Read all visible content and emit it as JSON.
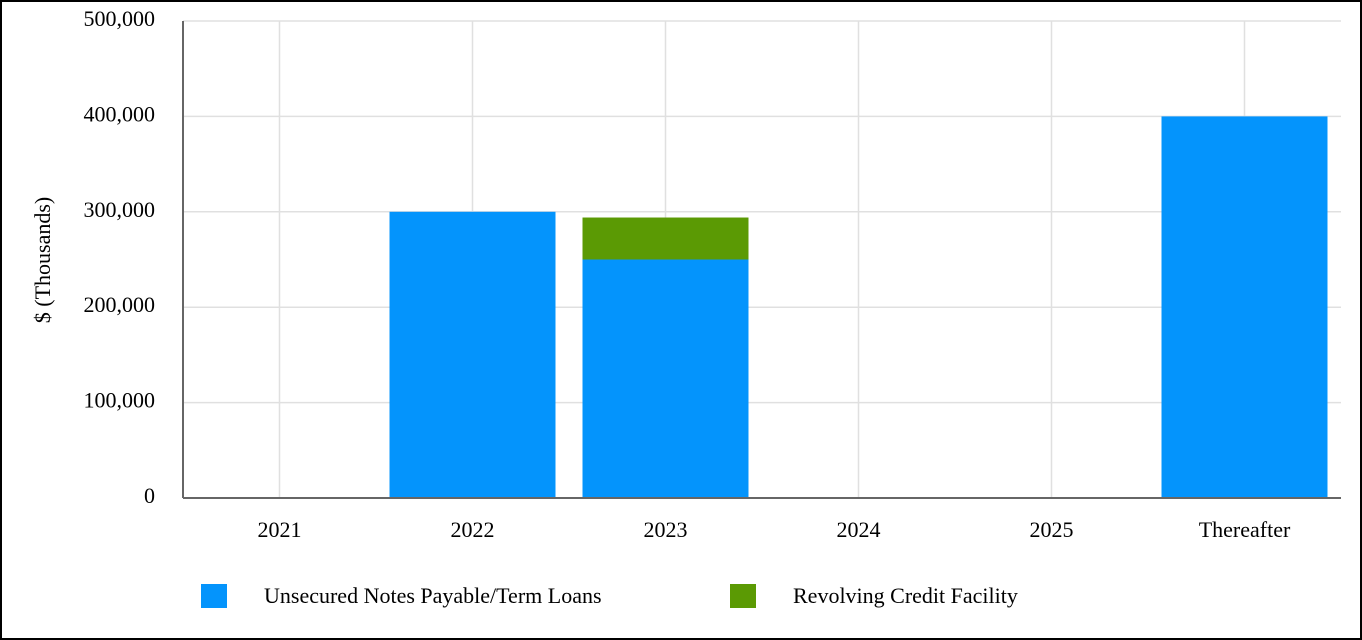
{
  "chart_data": {
    "type": "stacked_bar",
    "y_label": "$ (Thousands)",
    "categories": [
      "2021",
      "2022",
      "2023",
      "2024",
      "2025",
      "Thereafter"
    ],
    "series": [
      {
        "name": "Unsecured Notes Payable/Term Loans",
        "color": "#0494fc",
        "values": [
          0,
          300000,
          250000,
          0,
          0,
          400000
        ]
      },
      {
        "name": "Revolving Credit Facility",
        "color": "#5b9a04",
        "values": [
          0,
          0,
          44000,
          0,
          0,
          0
        ]
      }
    ],
    "ylim": [
      0,
      500000
    ],
    "yticks": [
      0,
      {
        "value": 100000,
        "label": "100,000"
      },
      {
        "value": 200000,
        "label": "200,000"
      },
      {
        "value": 300000,
        "label": "300,000"
      },
      {
        "value": 400000,
        "label": "400,000"
      },
      {
        "value": 500000,
        "label": "500,000"
      }
    ],
    "grid": true
  }
}
